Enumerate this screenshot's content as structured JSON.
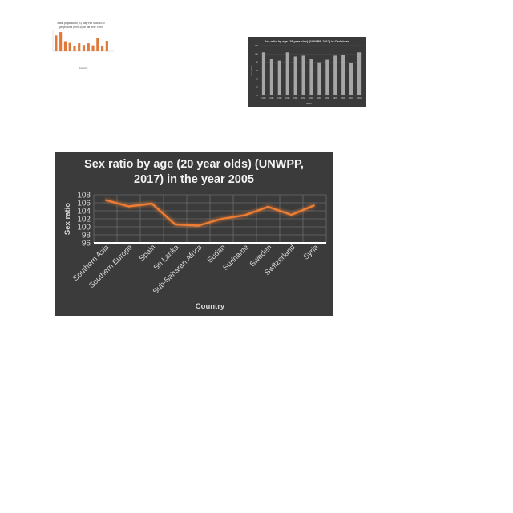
{
  "chart_data": [
    {
      "type": "bar",
      "title": "Rural population (%) long-run with 2050 projections (OWID) in the Year 1960",
      "xlabel": "Country",
      "ylabel": "",
      "categories": [
        "",
        "",
        "",
        "",
        "",
        "",
        "",
        "",
        "",
        "",
        "",
        "",
        ""
      ],
      "values": [
        38,
        46,
        24,
        20,
        13,
        19,
        15,
        19,
        14,
        31,
        12,
        25,
        0
      ],
      "ylim": [
        0,
        50
      ],
      "grid": false,
      "colors": {
        "bar": "#e07a3a",
        "background": "#ffffff",
        "text": "#333333"
      }
    },
    {
      "type": "bar",
      "title": "Sex ratio by age (15 year olds) (UNWPP, 2017) in Caribbean",
      "xlabel": "Years",
      "ylabel": "Sex Ratio",
      "categories": [
        "1990",
        "1991",
        "1992",
        "1993",
        "1994",
        "1995",
        "1996",
        "1997",
        "1998",
        "1999",
        "2000",
        "2001",
        "2002"
      ],
      "values": [
        104,
        88,
        84,
        104,
        94,
        96,
        88,
        80,
        86,
        96,
        98,
        78,
        104
      ],
      "ylim": [
        0,
        120
      ],
      "yticks": [
        0,
        20,
        40,
        60,
        80,
        100,
        120
      ],
      "grid": true,
      "colors": {
        "bar": "#a6a6a6",
        "background": "#3a3a3a",
        "text": "#d9d9d9"
      }
    },
    {
      "type": "line",
      "title": "Sex ratio by age (20 year olds) (UNWPP, 2017) in the year 2005",
      "xlabel": "Country",
      "ylabel": "Sex ratio",
      "categories": [
        "Southern Asia",
        "Southern Europe",
        "Spain",
        "Sri Lanka",
        "Sub-Saharan Africa",
        "Sudan",
        "Suriname",
        "Sweden",
        "Switzerland",
        "Syria"
      ],
      "values": [
        106.7,
        105.1,
        105.8,
        100.6,
        100.3,
        102.0,
        102.9,
        105.0,
        103.0,
        105.4
      ],
      "ylim": [
        96,
        108
      ],
      "yticks": [
        96,
        98,
        100,
        102,
        104,
        106,
        108
      ],
      "grid": true,
      "colors": {
        "line": "#ed7d31",
        "background": "#3b3b3b",
        "text": "#d9d9d9",
        "grid": "#6b6b6b"
      }
    }
  ]
}
